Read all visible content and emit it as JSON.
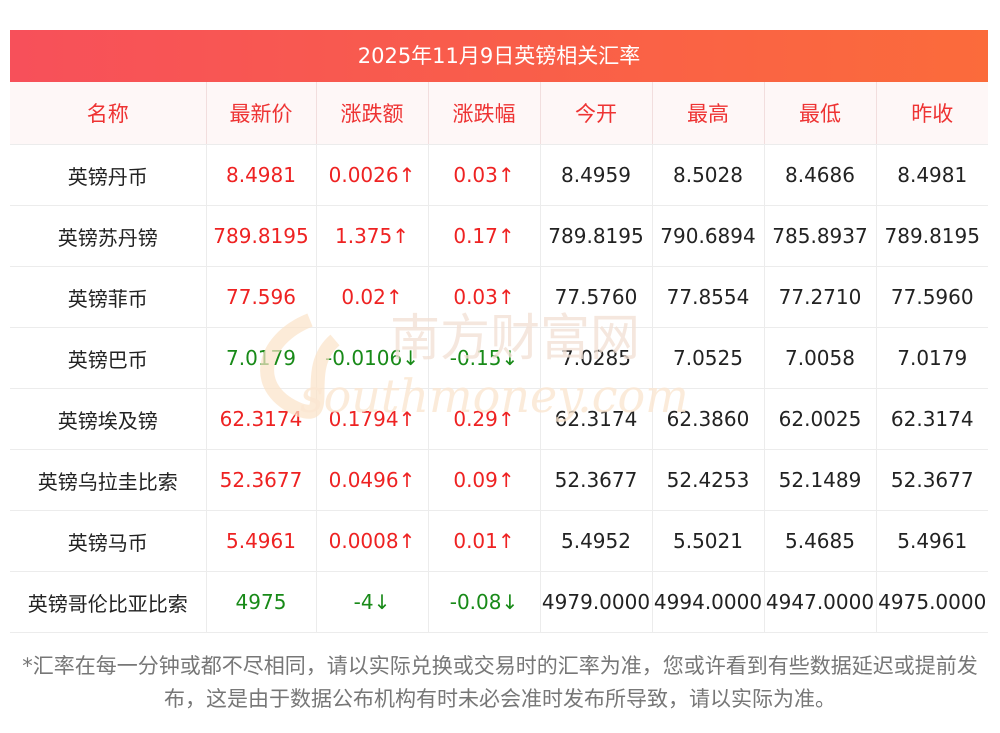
{
  "title": "2025年11月9日英镑相关汇率",
  "colors": {
    "up": "#ee2222",
    "down": "#188a18",
    "header_text": "#ee3333",
    "title_bg_start": "#f7505a",
    "title_bg_end": "#fb6b3b"
  },
  "headers": [
    "名称",
    "最新价",
    "涨跌额",
    "涨跌幅",
    "今开",
    "最高",
    "最低",
    "昨收"
  ],
  "rows": [
    {
      "name": "英镑丹币",
      "latest": "8.4981",
      "change": "0.0026↑",
      "pct": "0.03↑",
      "open": "8.4959",
      "high": "8.5028",
      "low": "8.4686",
      "prev": "8.4981",
      "trend": "up"
    },
    {
      "name": "英镑苏丹镑",
      "latest": "789.8195",
      "change": "1.375↑",
      "pct": "0.17↑",
      "open": "789.8195",
      "high": "790.6894",
      "low": "785.8937",
      "prev": "789.8195",
      "trend": "up"
    },
    {
      "name": "英镑菲币",
      "latest": "77.596",
      "change": "0.02↑",
      "pct": "0.03↑",
      "open": "77.5760",
      "high": "77.8554",
      "low": "77.2710",
      "prev": "77.5960",
      "trend": "up"
    },
    {
      "name": "英镑巴币",
      "latest": "7.0179",
      "change": "-0.0106↓",
      "pct": "-0.15↓",
      "open": "7.0285",
      "high": "7.0525",
      "low": "7.0058",
      "prev": "7.0179",
      "trend": "down"
    },
    {
      "name": "英镑埃及镑",
      "latest": "62.3174",
      "change": "0.1794↑",
      "pct": "0.29↑",
      "open": "62.3174",
      "high": "62.3860",
      "low": "62.0025",
      "prev": "62.3174",
      "trend": "up"
    },
    {
      "name": "英镑乌拉圭比索",
      "latest": "52.3677",
      "change": "0.0496↑",
      "pct": "0.09↑",
      "open": "52.3677",
      "high": "52.4253",
      "low": "52.1489",
      "prev": "52.3677",
      "trend": "up"
    },
    {
      "name": "英镑马币",
      "latest": "5.4961",
      "change": "0.0008↑",
      "pct": "0.01↑",
      "open": "5.4952",
      "high": "5.5021",
      "low": "5.4685",
      "prev": "5.4961",
      "trend": "up"
    },
    {
      "name": "英镑哥伦比亚比索",
      "latest": "4975",
      "change": "-4↓",
      "pct": "-0.08↓",
      "open": "4979.0000",
      "high": "4994.0000",
      "low": "4947.0000",
      "prev": "4975.0000",
      "trend": "down"
    }
  ],
  "watermark": {
    "cn": "南方财富网",
    "en": "southmoney.com"
  },
  "note": "*汇率在每一分钟或都不尽相同，请以实际兑换或交易时的汇率为准，您或许看到有些数据延迟或提前发布，这是由于数据公布机构有时未必会准时发布所导致，请以实际为准。"
}
